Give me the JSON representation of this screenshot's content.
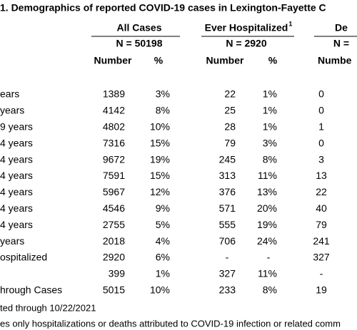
{
  "title": "1. Demographics of reported COVID-19 cases in Lexington-Fayette C",
  "groups": [
    {
      "name": "All Cases",
      "n": "N = 50198"
    },
    {
      "name": "Ever Hospitalized",
      "note": "1",
      "n": "N = 2920"
    },
    {
      "name": "De",
      "n": "N ="
    }
  ],
  "columns": [
    "Number",
    "%",
    "Number",
    "%",
    "Numbe"
  ],
  "rows": [
    [
      "ears",
      "1389",
      "3%",
      "22",
      "1%",
      "0"
    ],
    [
      "years",
      "4142",
      "8%",
      "25",
      "1%",
      "0"
    ],
    [
      "9 years",
      "4802",
      "10%",
      "28",
      "1%",
      "1"
    ],
    [
      "4 years",
      "7316",
      "15%",
      "79",
      "3%",
      "0"
    ],
    [
      "4 years",
      "9672",
      "19%",
      "245",
      "8%",
      "3"
    ],
    [
      "4 years",
      "7591",
      "15%",
      "313",
      "11%",
      "13"
    ],
    [
      "4 years",
      "5967",
      "12%",
      "376",
      "13%",
      "22"
    ],
    [
      "4 years",
      "4546",
      "9%",
      "571",
      "20%",
      "40"
    ],
    [
      "4 years",
      "2755",
      "5%",
      "555",
      "19%",
      "79"
    ],
    [
      "years",
      "2018",
      "4%",
      "706",
      "24%",
      "241"
    ],
    [
      "ospitalized",
      "2920",
      "6%",
      "-",
      "-",
      "327"
    ],
    [
      null,
      "399",
      "1%",
      "327",
      "11%",
      "-"
    ],
    [
      "hrough Cases",
      "5015",
      "10%",
      "233",
      "8%",
      "19"
    ]
  ],
  "footnotes": [
    "ted through 10/22/2021",
    "es only hospitalizations or deaths attributed to COVID-19 infection or related comm"
  ]
}
